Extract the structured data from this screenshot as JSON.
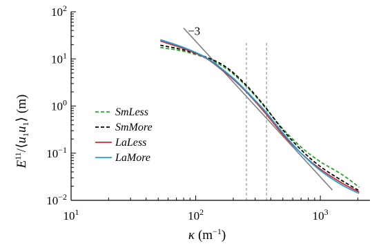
{
  "chart_data": {
    "type": "line",
    "x_scale": "log",
    "y_scale": "log",
    "xlim": [
      10,
      2500
    ],
    "ylim": [
      0.01,
      100
    ],
    "x_ticks": [
      {
        "value": 10,
        "base": "10",
        "exp": "1"
      },
      {
        "value": 100,
        "base": "10",
        "exp": "2"
      },
      {
        "value": 1000,
        "base": "10",
        "exp": "3"
      }
    ],
    "y_ticks": [
      {
        "value": 0.01,
        "base": "10",
        "exp": "−2"
      },
      {
        "value": 0.1,
        "base": "10",
        "exp": "−1"
      },
      {
        "value": 1,
        "base": "10",
        "exp": "0"
      },
      {
        "value": 10,
        "base": "10",
        "exp": "1"
      },
      {
        "value": 100,
        "base": "10",
        "exp": "2"
      }
    ],
    "xlabel": {
      "symbol": "κ",
      "unit": "(m",
      "unit_exp": "−1",
      "close": ")"
    },
    "ylabel": {
      "E": "E",
      "E_sup": "11",
      "slash": "/⟨",
      "u": "u",
      "u_sub": "1",
      "u2": "u",
      "u2_sub": "1",
      "close": "⟩",
      "unit": "(m)"
    },
    "grid": false,
    "legend_position": "left",
    "series": [
      {
        "name": "SmLess",
        "color": "#2ca02c",
        "dash": "5,3",
        "x": [
          52,
          80,
          120,
          160,
          200,
          250,
          300,
          370,
          500,
          700,
          1000,
          1500,
          2050
        ],
        "y": [
          17.5,
          14.5,
          10.5,
          7.3,
          4.8,
          2.75,
          1.65,
          0.86,
          0.33,
          0.135,
          0.066,
          0.035,
          0.019
        ]
      },
      {
        "name": "SmMore",
        "color": "#000000",
        "dash": "5,3",
        "x": [
          52,
          80,
          120,
          160,
          200,
          250,
          300,
          370,
          500,
          700,
          1000,
          1500,
          2050
        ],
        "y": [
          19.5,
          15.5,
          11.0,
          7.8,
          5.1,
          2.9,
          1.72,
          0.88,
          0.31,
          0.118,
          0.052,
          0.026,
          0.016
        ]
      },
      {
        "name": "LaLess",
        "color": "#d62728",
        "dash": "",
        "x": [
          52,
          80,
          120,
          160,
          200,
          250,
          300,
          370,
          500,
          700,
          1000,
          1500,
          2050
        ],
        "y": [
          24.0,
          16.5,
          10.5,
          6.0,
          3.7,
          2.1,
          1.25,
          0.66,
          0.25,
          0.1,
          0.046,
          0.023,
          0.015
        ]
      },
      {
        "name": "LaMore",
        "color": "#1f9fdf",
        "dash": "",
        "x": [
          52,
          80,
          120,
          160,
          200,
          250,
          300,
          370,
          500,
          700,
          1000,
          1500,
          2050
        ],
        "y": [
          25.5,
          17.5,
          10.8,
          6.3,
          3.9,
          2.2,
          1.32,
          0.72,
          0.27,
          0.1,
          0.043,
          0.021,
          0.014
        ]
      }
    ],
    "slope_line": {
      "label": "−3",
      "color": "#808080",
      "x": [
        80,
        1250
      ],
      "y": [
        45,
        0.0165
      ]
    },
    "vlines": [
      {
        "x": 255,
        "color": "#999999"
      },
      {
        "x": 370,
        "color": "#999999"
      }
    ]
  }
}
